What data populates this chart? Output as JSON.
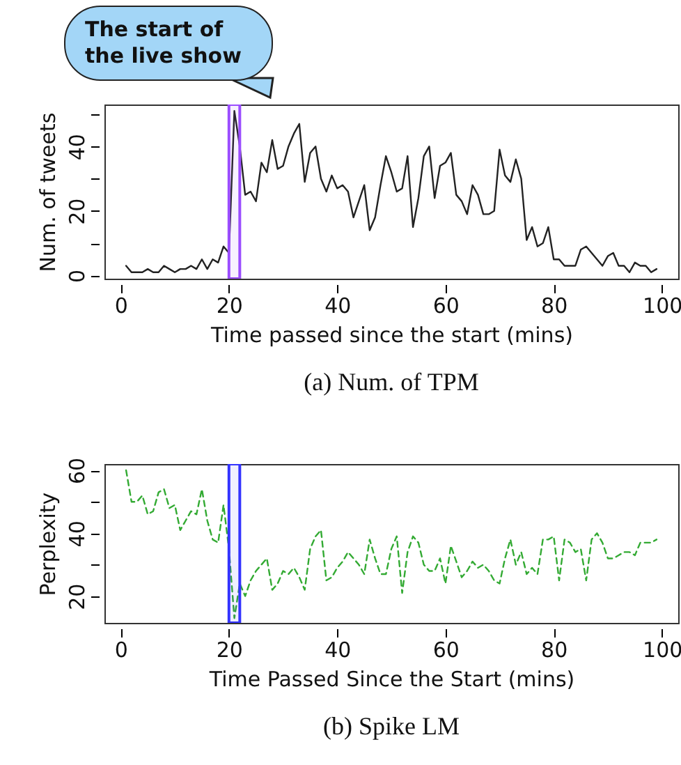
{
  "chart_data": [
    {
      "type": "line",
      "title": "(a)  Num. of TPM",
      "xlabel": "Time passed since the start (mins)",
      "ylabel": "Num. of tweets",
      "annotations": [
        "The start of the live show"
      ],
      "x": [
        1,
        2,
        3,
        4,
        5,
        6,
        7,
        8,
        9,
        10,
        11,
        12,
        13,
        14,
        15,
        16,
        17,
        18,
        19,
        20,
        21,
        22,
        23,
        24,
        25,
        26,
        27,
        28,
        29,
        30,
        31,
        32,
        33,
        34,
        35,
        36,
        37,
        38,
        39,
        40,
        41,
        42,
        43,
        44,
        45,
        46,
        47,
        48,
        49,
        50,
        51,
        52,
        53,
        54,
        55,
        56,
        57,
        58,
        59,
        60,
        61,
        62,
        63,
        64,
        65,
        66,
        67,
        68,
        69,
        70,
        71,
        72,
        73,
        74,
        75,
        76,
        77,
        78,
        79,
        80,
        81,
        82,
        83,
        84,
        85,
        86,
        87,
        88,
        89,
        90,
        91,
        92,
        93,
        94,
        95,
        96,
        97,
        98,
        99
      ],
      "series": [
        {
          "color": "#222222",
          "line_style": "solid",
          "values": [
            3,
            1,
            1,
            1,
            2,
            1,
            1,
            3,
            2,
            1,
            2,
            2,
            3,
            2,
            5,
            2,
            5,
            4,
            9,
            7,
            51,
            40,
            25,
            26,
            23,
            35,
            32,
            42,
            33,
            34,
            40,
            44,
            47,
            29,
            38,
            40,
            30,
            26,
            31,
            27,
            28,
            26,
            18,
            23,
            28,
            14,
            18,
            28,
            37,
            32,
            26,
            27,
            37,
            15,
            24,
            37,
            40,
            24,
            34,
            35,
            38,
            25,
            23,
            19,
            28,
            25,
            19,
            19,
            20,
            39,
            31,
            29,
            36,
            30,
            11,
            15,
            9,
            10,
            15,
            5,
            5,
            3,
            3,
            3,
            8,
            9,
            7,
            5,
            3,
            6,
            7,
            3,
            3,
            1,
            4,
            3,
            3,
            1,
            2
          ]
        }
      ],
      "bands": [
        {
          "axis": "x",
          "from": 20,
          "to": 22,
          "color": "#9b4dff"
        }
      ],
      "xlim": [
        -3,
        103
      ],
      "ylim": [
        -1,
        53
      ],
      "xticks": [
        0,
        20,
        40,
        60,
        80,
        100
      ],
      "yticks": [
        0,
        {
          "value": 10,
          "label": null
        },
        20,
        {
          "value": 30,
          "label": null
        },
        40,
        {
          "value": 50,
          "label": null
        }
      ],
      "grid": false
    },
    {
      "type": "line",
      "title": "(b)  Spike LM",
      "xlabel": "Time Passed Since the Start (mins)",
      "ylabel": "Perplexity",
      "x": [
        1,
        2,
        3,
        4,
        5,
        6,
        7,
        8,
        9,
        10,
        11,
        12,
        13,
        14,
        15,
        16,
        17,
        18,
        19,
        20,
        21,
        22,
        23,
        24,
        25,
        26,
        27,
        28,
        29,
        30,
        31,
        32,
        33,
        34,
        35,
        36,
        37,
        38,
        39,
        40,
        41,
        42,
        43,
        44,
        45,
        46,
        47,
        48,
        49,
        50,
        51,
        52,
        53,
        54,
        55,
        56,
        57,
        58,
        59,
        60,
        61,
        62,
        63,
        64,
        65,
        66,
        67,
        68,
        69,
        70,
        71,
        72,
        73,
        74,
        75,
        76,
        77,
        78,
        79,
        80,
        81,
        82,
        83,
        84,
        85,
        86,
        87,
        88,
        89,
        90,
        91,
        92,
        93,
        94,
        95,
        96,
        97,
        98,
        99
      ],
      "series": [
        {
          "color": "#33aa33",
          "line_style": "dashed",
          "values": [
            60,
            50,
            50,
            52,
            46,
            47,
            53,
            54,
            48,
            49,
            41,
            44,
            47,
            46,
            54,
            44,
            38,
            37,
            49,
            35,
            13,
            24,
            20,
            25,
            28,
            30,
            32,
            22,
            24,
            28,
            27,
            29,
            26,
            22,
            35,
            39,
            41,
            25,
            26,
            29,
            31,
            34,
            32,
            30,
            27,
            38,
            32,
            27,
            27,
            35,
            39,
            21,
            34,
            39,
            37,
            30,
            28,
            28,
            32,
            24,
            36,
            31,
            26,
            28,
            31,
            29,
            30,
            28,
            25,
            24,
            32,
            38,
            30,
            34,
            27,
            29,
            27,
            38,
            38,
            39,
            25,
            38,
            37,
            34,
            35,
            25,
            38,
            40,
            37,
            32,
            32,
            33,
            34,
            34,
            33,
            37,
            37,
            37,
            38
          ]
        }
      ],
      "bands": [
        {
          "axis": "x",
          "from": 20,
          "to": 22,
          "color": "#3333ff"
        }
      ],
      "xlim": [
        -3,
        103
      ],
      "ylim": [
        11.5,
        62
      ],
      "xticks": [
        0,
        20,
        40,
        60,
        80,
        100
      ],
      "yticks": [
        20,
        {
          "value": 30,
          "label": null
        },
        40,
        {
          "value": 50,
          "label": null
        },
        60
      ],
      "grid": false
    }
  ]
}
